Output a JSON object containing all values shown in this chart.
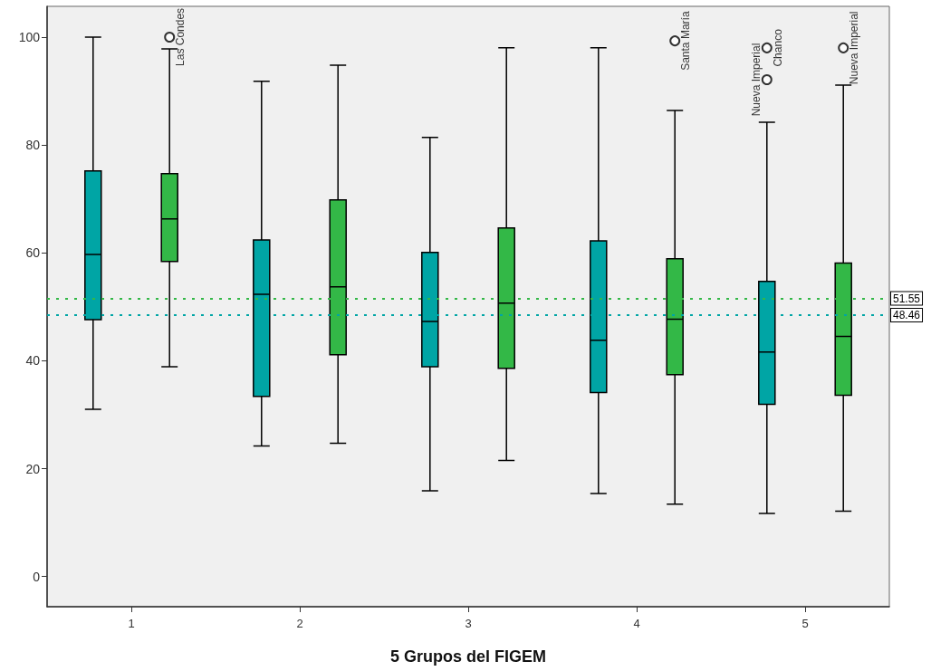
{
  "chart_data": {
    "type": "box",
    "xlabel": "5 Grupos del FIGEM",
    "categories": [
      "1",
      "2",
      "3",
      "4",
      "5"
    ],
    "ylim": [
      -5.6,
      105.7
    ],
    "yticks": [
      0,
      20,
      40,
      60,
      80,
      100
    ],
    "grid": false,
    "series": [
      {
        "color": "#00a5a5",
        "boxes": [
          {
            "low": 31.0,
            "q1": 47.6,
            "median": 59.7,
            "q3": 75.2,
            "high": 100
          },
          {
            "low": 24.2,
            "q1": 33.4,
            "median": 52.3,
            "q3": 62.4,
            "high": 91.8
          },
          {
            "low": 15.9,
            "q1": 38.9,
            "median": 47.3,
            "q3": 60.1,
            "high": 81.4
          },
          {
            "low": 15.4,
            "q1": 34.1,
            "median": 43.8,
            "q3": 62.2,
            "high": 98.0
          },
          {
            "low": 11.7,
            "q1": 31.9,
            "median": 41.6,
            "q3": 54.7,
            "high": 84.2,
            "outliers": [
              98.0,
              92.1
            ]
          }
        ]
      },
      {
        "color": "#33b847",
        "boxes": [
          {
            "low": 38.9,
            "q1": 58.4,
            "median": 66.3,
            "q3": 74.7,
            "high": 97.8,
            "outliers": [
              100
            ]
          },
          {
            "low": 24.7,
            "q1": 41.1,
            "median": 53.7,
            "q3": 69.8,
            "high": 94.8
          },
          {
            "low": 21.5,
            "q1": 38.6,
            "median": 50.7,
            "q3": 64.6,
            "high": 98.0
          },
          {
            "low": 13.4,
            "q1": 37.4,
            "median": 47.7,
            "q3": 58.9,
            "high": 86.4,
            "outliers": [
              99.3
            ]
          },
          {
            "low": 12.1,
            "q1": 33.6,
            "median": 44.5,
            "q3": 58.1,
            "high": 91.1,
            "outliers": [
              98.0
            ]
          }
        ]
      }
    ],
    "ref_lines": [
      {
        "axis": "y",
        "value": 51.55,
        "label": "51.55",
        "color": "#33b847",
        "line_style": "dotted"
      },
      {
        "axis": "y",
        "value": 48.46,
        "label": "48.46",
        "color": "#00a5a5",
        "line_style": "dotted"
      }
    ],
    "annotations": [
      "Las Condes",
      "Santa María",
      "Chanco",
      "Nueva Imperial",
      "Nueva Imperial"
    ]
  }
}
